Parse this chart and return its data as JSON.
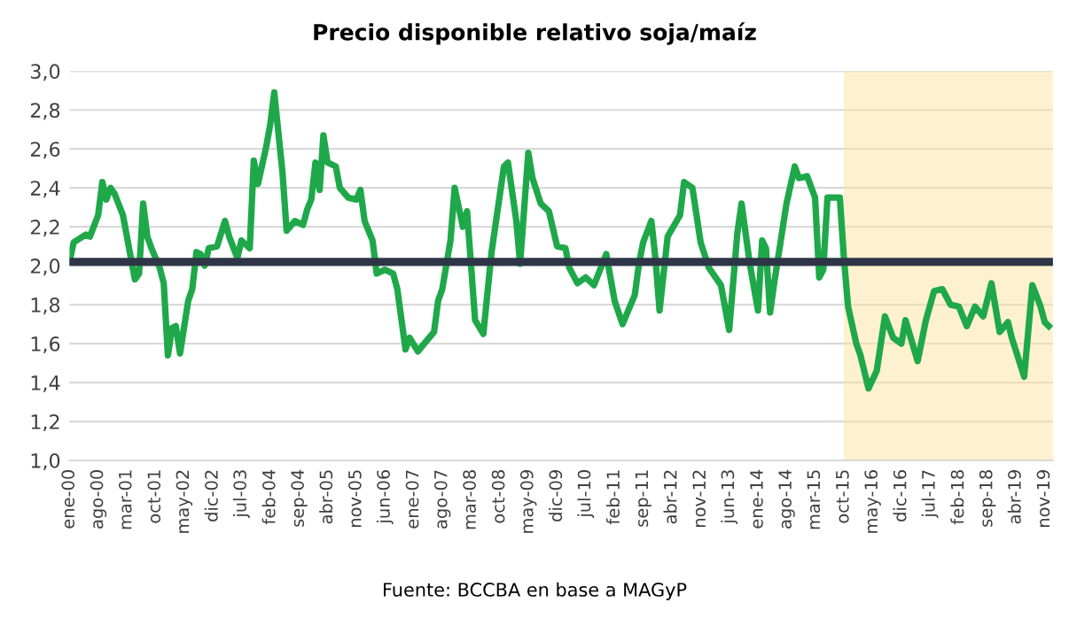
{
  "chart_data": {
    "type": "line",
    "title": "Precio disponible relativo soja/maíz",
    "annotations": [
      "Fuente: BCCBA en base a MAGyP"
    ],
    "series": [
      {
        "color": "#1fa84a",
        "x": [
          "2000-01",
          "2000-02",
          "2000-05",
          "2000-06",
          "2000-08",
          "2000-09",
          "2000-10",
          "2000-11",
          "2000-12",
          "2001-02",
          "2001-04",
          "2001-05",
          "2001-06",
          "2001-07",
          "2001-08",
          "2001-09",
          "2001-11",
          "2001-12",
          "2002-01",
          "2002-02",
          "2002-03",
          "2002-04",
          "2002-06",
          "2002-07",
          "2002-08",
          "2002-09",
          "2002-10",
          "2002-11",
          "2003-01",
          "2003-03",
          "2003-04",
          "2003-06",
          "2003-07",
          "2003-09",
          "2003-10",
          "2003-11",
          "2004-01",
          "2004-02",
          "2004-03",
          "2004-05",
          "2004-06",
          "2004-08",
          "2004-10",
          "2004-11",
          "2004-12",
          "2005-01",
          "2005-02",
          "2005-03",
          "2005-04",
          "2005-06",
          "2005-07",
          "2005-09",
          "2005-11",
          "2005-12",
          "2006-01",
          "2006-03",
          "2006-04",
          "2006-06",
          "2006-08",
          "2006-09",
          "2006-11",
          "2006-12",
          "2007-02",
          "2007-04",
          "2007-06",
          "2007-07",
          "2007-08",
          "2007-10",
          "2007-11",
          "2008-01",
          "2008-02",
          "2008-04",
          "2008-06",
          "2008-08",
          "2008-11",
          "2008-12",
          "2009-02",
          "2009-03",
          "2009-05",
          "2009-06",
          "2009-08",
          "2009-10",
          "2009-12",
          "2010-02",
          "2010-03",
          "2010-05",
          "2010-07",
          "2010-09",
          "2010-12",
          "2011-02",
          "2011-04",
          "2011-07",
          "2011-08",
          "2011-09",
          "2011-11",
          "2011-12",
          "2012-01",
          "2012-03",
          "2012-06",
          "2012-07",
          "2012-09",
          "2012-11",
          "2013-01",
          "2013-04",
          "2013-06",
          "2013-08",
          "2013-09",
          "2013-11",
          "2014-01",
          "2014-02",
          "2014-03",
          "2014-04",
          "2014-05",
          "2014-08",
          "2014-10",
          "2014-11",
          "2015-01",
          "2015-03",
          "2015-04",
          "2015-05",
          "2015-06",
          "2015-09",
          "2015-10",
          "2015-11",
          "2016-01",
          "2016-02",
          "2016-04",
          "2016-06",
          "2016-08",
          "2016-10",
          "2016-12",
          "2017-01",
          "2017-04",
          "2017-06",
          "2017-08",
          "2017-10",
          "2017-12",
          "2018-02",
          "2018-04",
          "2018-06",
          "2018-08",
          "2018-10",
          "2018-12",
          "2019-02",
          "2019-03",
          "2019-06",
          "2019-08",
          "2019-10",
          "2019-11",
          "2019-12"
        ],
        "values": [
          2.02,
          2.12,
          2.16,
          2.15,
          2.26,
          2.43,
          2.34,
          2.4,
          2.37,
          2.26,
          2.04,
          1.93,
          1.96,
          2.32,
          2.15,
          2.09,
          1.99,
          1.91,
          1.54,
          1.68,
          1.69,
          1.55,
          1.82,
          1.88,
          2.07,
          2.06,
          2.0,
          2.09,
          2.1,
          2.23,
          2.15,
          2.04,
          2.13,
          2.09,
          2.54,
          2.42,
          2.61,
          2.73,
          2.89,
          2.48,
          2.18,
          2.23,
          2.21,
          2.29,
          2.34,
          2.53,
          2.39,
          2.67,
          2.53,
          2.51,
          2.4,
          2.35,
          2.34,
          2.39,
          2.23,
          2.13,
          1.96,
          1.98,
          1.96,
          1.88,
          1.57,
          1.63,
          1.56,
          1.61,
          1.66,
          1.82,
          1.88,
          2.13,
          2.4,
          2.2,
          2.28,
          1.72,
          1.65,
          2.07,
          2.51,
          2.53,
          2.23,
          2.01,
          2.58,
          2.45,
          2.32,
          2.28,
          2.1,
          2.09,
          1.99,
          1.91,
          1.94,
          1.9,
          2.06,
          1.82,
          1.7,
          1.85,
          2.01,
          2.12,
          2.23,
          2.04,
          1.77,
          2.15,
          2.26,
          2.43,
          2.4,
          2.12,
          1.99,
          1.9,
          1.67,
          2.17,
          2.32,
          2.01,
          1.77,
          2.13,
          2.09,
          1.76,
          1.91,
          2.32,
          2.51,
          2.45,
          2.46,
          2.35,
          1.94,
          1.98,
          2.35,
          2.35,
          2.04,
          1.79,
          1.6,
          1.54,
          1.37,
          1.46,
          1.74,
          1.63,
          1.6,
          1.72,
          1.51,
          1.72,
          1.87,
          1.88,
          1.8,
          1.79,
          1.69,
          1.79,
          1.74,
          1.91,
          1.66,
          1.71,
          1.63,
          1.43,
          1.9,
          1.79,
          1.71,
          1.69
        ]
      }
    ],
    "xlim": [
      "2000-01",
      "2020-01"
    ],
    "xticks": [
      {
        "value": "2000-01",
        "label": "ene-00"
      },
      {
        "value": "2000-08",
        "label": "ago-00"
      },
      {
        "value": "2001-03",
        "label": "mar-01"
      },
      {
        "value": "2001-10",
        "label": "oct-01"
      },
      {
        "value": "2002-05",
        "label": "may-02"
      },
      {
        "value": "2002-12",
        "label": "dic-02"
      },
      {
        "value": "2003-07",
        "label": "jul-03"
      },
      {
        "value": "2004-02",
        "label": "feb-04"
      },
      {
        "value": "2004-09",
        "label": "sep-04"
      },
      {
        "value": "2005-04",
        "label": "abr-05"
      },
      {
        "value": "2005-11",
        "label": "nov-05"
      },
      {
        "value": "2006-06",
        "label": "jun-06"
      },
      {
        "value": "2007-01",
        "label": "ene-07"
      },
      {
        "value": "2007-08",
        "label": "ago-07"
      },
      {
        "value": "2008-03",
        "label": "mar-08"
      },
      {
        "value": "2008-10",
        "label": "oct-08"
      },
      {
        "value": "2009-05",
        "label": "may-09"
      },
      {
        "value": "2009-12",
        "label": "dic-09"
      },
      {
        "value": "2010-07",
        "label": "jul-10"
      },
      {
        "value": "2011-02",
        "label": "feb-11"
      },
      {
        "value": "2011-09",
        "label": "sep-11"
      },
      {
        "value": "2012-04",
        "label": "abr-12"
      },
      {
        "value": "2012-11",
        "label": "nov-12"
      },
      {
        "value": "2013-06",
        "label": "jun-13"
      },
      {
        "value": "2014-01",
        "label": "ene-14"
      },
      {
        "value": "2014-08",
        "label": "ago-14"
      },
      {
        "value": "2015-03",
        "label": "mar-15"
      },
      {
        "value": "2015-10",
        "label": "oct-15"
      },
      {
        "value": "2016-05",
        "label": "may-16"
      },
      {
        "value": "2016-12",
        "label": "dic-16"
      },
      {
        "value": "2017-07",
        "label": "jul-17"
      },
      {
        "value": "2018-02",
        "label": "feb-18"
      },
      {
        "value": "2018-09",
        "label": "sep-18"
      },
      {
        "value": "2019-04",
        "label": "abr-19"
      },
      {
        "value": "2019-11",
        "label": "nov-19"
      }
    ],
    "ylim": [
      1.0,
      3.0
    ],
    "yticks": [
      {
        "value": 1.0,
        "label": "1,0"
      },
      {
        "value": 1.2,
        "label": "1,2"
      },
      {
        "value": 1.4,
        "label": "1,4"
      },
      {
        "value": 1.6,
        "label": "1,6"
      },
      {
        "value": 1.8,
        "label": "1,8"
      },
      {
        "value": 2.0,
        "label": "2,0"
      },
      {
        "value": 2.2,
        "label": "2,2"
      },
      {
        "value": 2.4,
        "label": "2,4"
      },
      {
        "value": 2.6,
        "label": "2,6"
      },
      {
        "value": 2.8,
        "label": "2,8"
      },
      {
        "value": 3.0,
        "label": "3,0"
      }
    ],
    "ref_lines": [
      {
        "axis": "y",
        "value": 2.02,
        "color": "#2e3547"
      }
    ],
    "bands": [
      {
        "axis": "x",
        "from": "2015-10",
        "to": "2020-01",
        "color": "#fbe3a0"
      }
    ],
    "grid": "y",
    "legend": false,
    "marker": "none",
    "line_style": "solid"
  }
}
